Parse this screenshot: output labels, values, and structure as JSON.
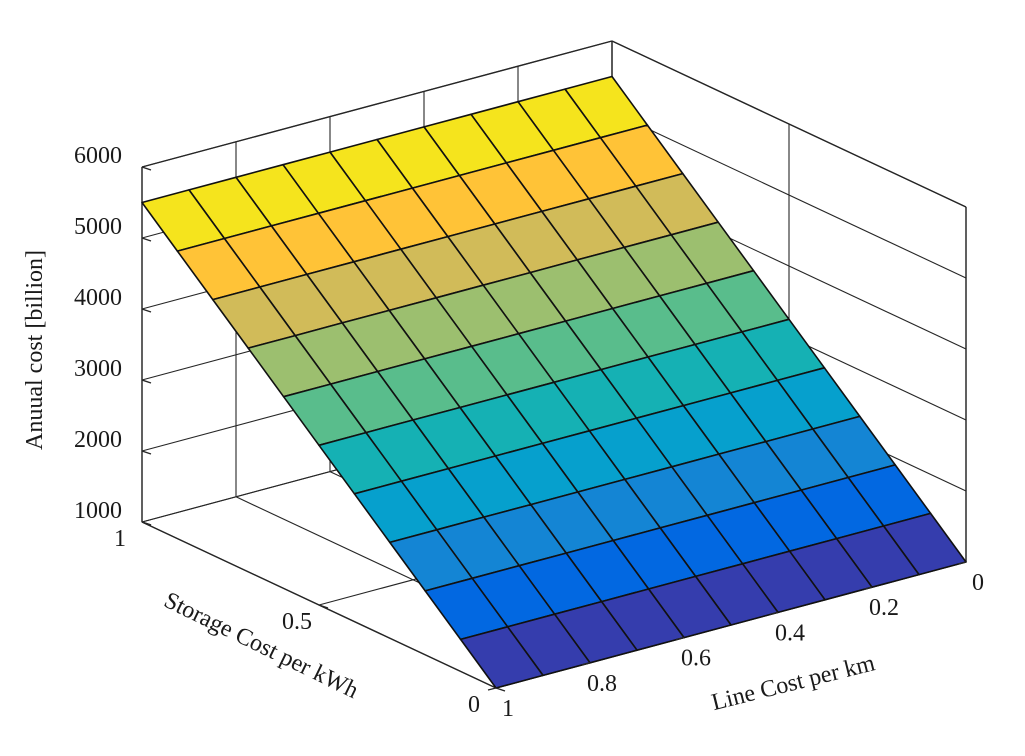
{
  "chart_data": {
    "type": "surface",
    "xlabel": "Line Cost per km",
    "ylabel": "Storage Cost per kWh",
    "zlabel": "Anuual cost [billion]",
    "x_ticks": [
      0,
      0.2,
      0.4,
      0.6,
      0.8,
      1
    ],
    "x_tick_labels": [
      "0",
      "0.2",
      "0.4",
      "0.6",
      "0.8",
      "1"
    ],
    "y_ticks": [
      0,
      0.5,
      1
    ],
    "y_tick_labels": [
      "0",
      "0.5",
      "1"
    ],
    "z_ticks": [
      1000,
      2000,
      3000,
      4000,
      5000,
      6000
    ],
    "z_tick_labels": [
      "1000",
      "2000",
      "3000",
      "4000",
      "5000",
      "6000"
    ],
    "xlim": [
      0,
      1
    ],
    "ylim": [
      0,
      1
    ],
    "zlim": [
      1000,
      6000
    ],
    "grid": true,
    "colormap": "parula",
    "x": [
      0,
      0.1,
      0.2,
      0.3,
      0.4,
      0.5,
      0.6,
      0.7,
      0.8,
      0.9,
      1
    ],
    "y": [
      0,
      0.1,
      0.2,
      0.3,
      0.4,
      0.5,
      0.6,
      0.7,
      0.8,
      0.9,
      1
    ],
    "z_model": {
      "intercept": 1000,
      "x_coef": 0,
      "y_coef": 4500
    },
    "z_description": "Annual cost varies linearly with storage cost per kWh (about 1000 at 0 to 5500 at 1) and is approximately constant along line cost per km"
  }
}
